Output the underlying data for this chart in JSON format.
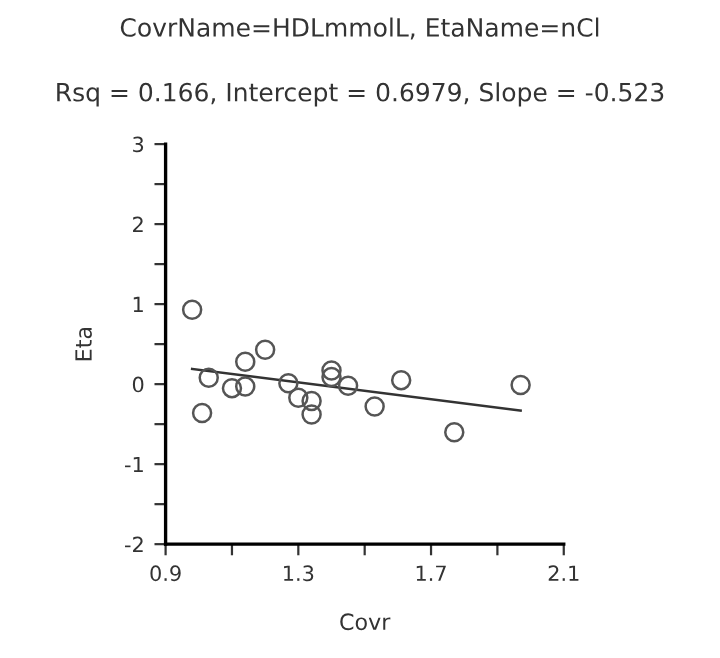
{
  "chart_data": {
    "type": "scatter",
    "title": "CovrName=HDLmmolL, EtaName=nCl",
    "subtitle": "Rsq = 0.166, Intercept = 0.6979, Slope = -0.523",
    "xlabel": "Covr",
    "ylabel": "Eta",
    "xlim": [
      0.9,
      2.1
    ],
    "ylim": [
      -2,
      3
    ],
    "xticks": [
      0.9,
      {
        "value": 1.1,
        "label": null
      },
      1.3,
      {
        "value": 1.5,
        "label": null
      },
      1.7,
      {
        "value": 1.9,
        "label": null
      },
      2.1
    ],
    "yticks": [
      -2,
      {
        "value": -1.5,
        "label": null
      },
      -1,
      {
        "value": -0.5,
        "label": null
      },
      0,
      {
        "value": 0.5,
        "label": null
      },
      1,
      {
        "value": 1.5,
        "label": null
      },
      2,
      {
        "value": 2.5,
        "label": null
      },
      3
    ],
    "grid": false,
    "legend": false,
    "series": [
      {
        "marker": "circle",
        "color": "#555555",
        "x": [
          0.98,
          1.01,
          1.03,
          1.1,
          1.14,
          1.14,
          1.2,
          1.27,
          1.3,
          1.34,
          1.34,
          1.4,
          1.4,
          1.45,
          1.53,
          1.61,
          1.77,
          1.97
        ],
        "values": [
          0.93,
          -0.36,
          0.08,
          -0.05,
          -0.03,
          0.28,
          0.43,
          0.01,
          -0.17,
          -0.21,
          -0.38,
          0.17,
          0.09,
          -0.02,
          -0.28,
          0.05,
          -0.6,
          -0.01
        ]
      },
      {
        "type": "line",
        "marker": "none",
        "color": "#333333",
        "x": [
          0.98,
          1.97
        ],
        "values": [
          0.19,
          -0.33
        ]
      }
    ]
  }
}
